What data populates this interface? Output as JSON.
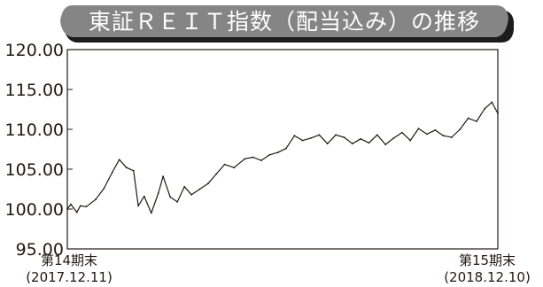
{
  "chart_data": {
    "type": "line",
    "title": "東証ＲＥＩＴ指数（配当込み）の推移",
    "ylim": [
      95,
      120
    ],
    "y_ticks": [
      "120.00",
      "115.00",
      "110.00",
      "105.00",
      "100.00",
      "95.00"
    ],
    "x_start_label": "第14期末",
    "x_start_date": "(2017.12.11)",
    "x_end_label": "第15期末",
    "x_end_date": "(2018.12.10)",
    "grid": false,
    "series": [
      {
        "color": "#231815",
        "x": [
          "2017-12-11",
          "2017-12-14",
          "2017-12-19",
          "2017-12-22",
          "2017-12-27",
          "2018-01-04",
          "2018-01-11",
          "2018-01-18",
          "2018-01-24",
          "2018-01-30",
          "2018-02-05",
          "2018-02-09",
          "2018-02-14",
          "2018-02-20",
          "2018-02-26",
          "2018-03-02",
          "2018-03-08",
          "2018-03-14",
          "2018-03-20",
          "2018-03-26",
          "2018-04-02",
          "2018-04-09",
          "2018-04-16",
          "2018-04-23",
          "2018-05-01",
          "2018-05-10",
          "2018-05-17",
          "2018-05-24",
          "2018-05-31",
          "2018-06-07",
          "2018-06-14",
          "2018-06-21",
          "2018-06-28",
          "2018-07-05",
          "2018-07-12",
          "2018-07-19",
          "2018-07-26",
          "2018-08-02",
          "2018-08-09",
          "2018-08-16",
          "2018-08-23",
          "2018-08-30",
          "2018-09-06",
          "2018-09-13",
          "2018-09-20",
          "2018-09-27",
          "2018-10-04",
          "2018-10-11",
          "2018-10-18",
          "2018-10-25",
          "2018-11-01",
          "2018-11-08",
          "2018-11-15",
          "2018-11-22",
          "2018-11-29",
          "2018-12-05",
          "2018-12-10"
        ],
        "values": [
          100.0,
          100.6,
          99.6,
          100.4,
          100.3,
          101.2,
          102.6,
          104.6,
          106.2,
          105.2,
          104.8,
          100.4,
          101.6,
          99.5,
          102.0,
          104.1,
          101.5,
          100.9,
          102.8,
          101.8,
          102.5,
          103.2,
          104.4,
          105.6,
          105.2,
          106.3,
          106.5,
          106.1,
          106.8,
          107.1,
          107.6,
          109.2,
          108.6,
          108.9,
          109.3,
          108.2,
          109.3,
          109.0,
          108.2,
          108.8,
          108.3,
          109.3,
          108.1,
          108.9,
          109.6,
          108.6,
          110.1,
          109.4,
          109.9,
          109.2,
          109.0,
          110.0,
          111.4,
          111.0,
          112.6,
          113.4,
          112.0
        ]
      }
    ]
  }
}
